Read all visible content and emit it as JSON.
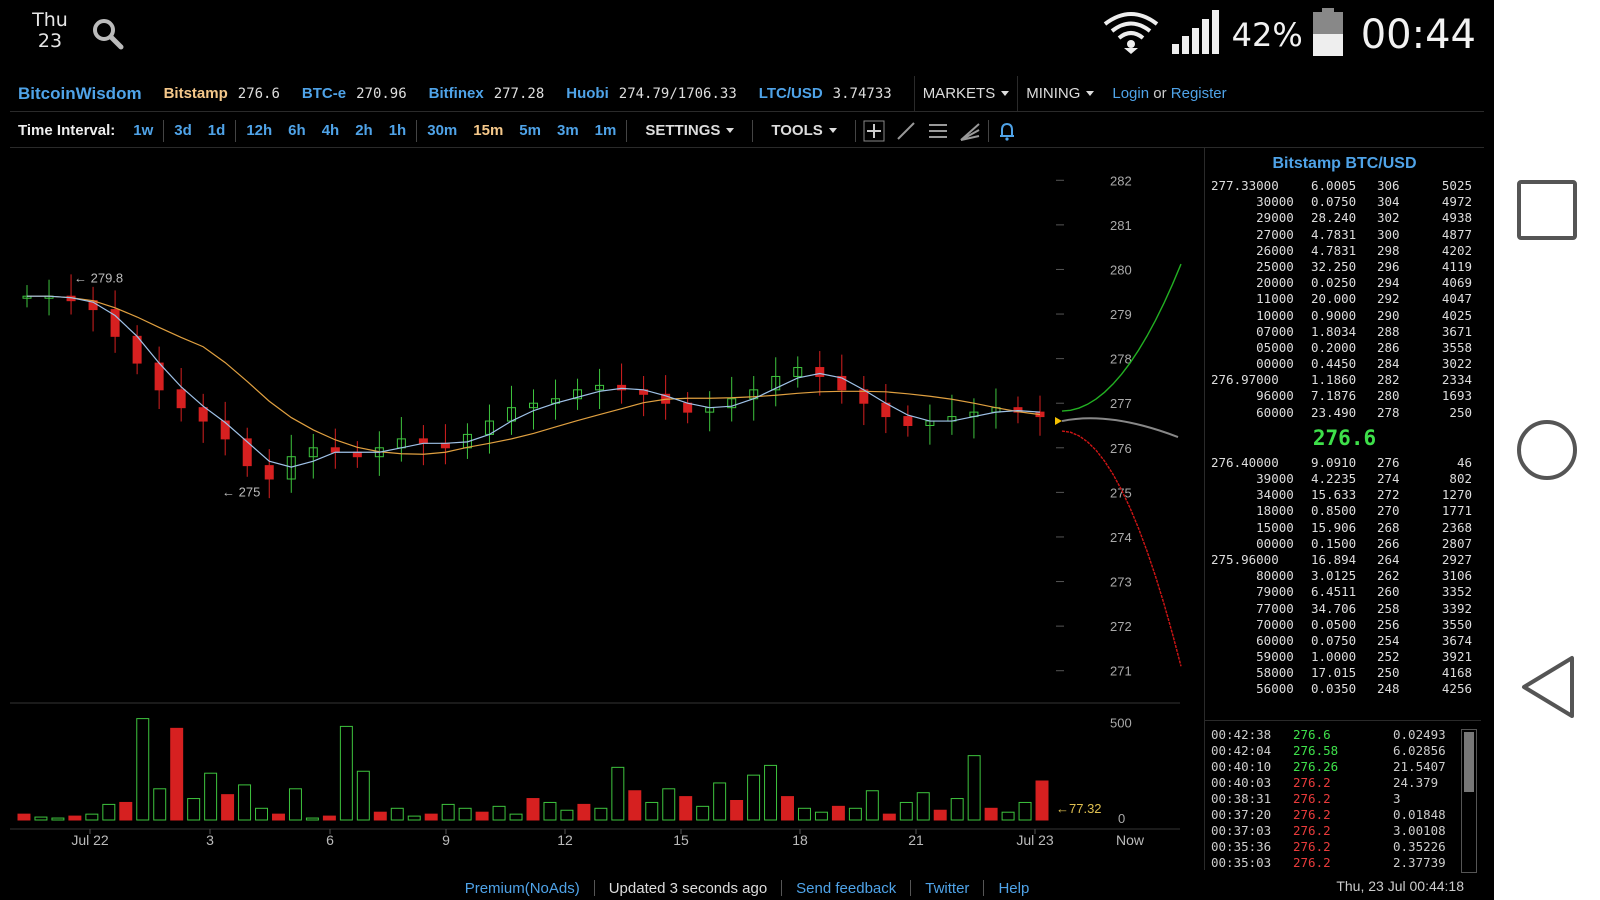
{
  "status_bar": {
    "day_name": "Thu",
    "day_num": "23",
    "battery": "42%",
    "time": "00:44",
    "icons": [
      "search-icon",
      "wifi-icon",
      "signal-icon",
      "battery-icon"
    ]
  },
  "nav": {
    "brand": "BitcoinWisdom",
    "tickers": [
      {
        "exchange": "Bitstamp",
        "price": "276.6"
      },
      {
        "exchange": "BTC-e",
        "price": "270.96"
      },
      {
        "exchange": "Bitfinex",
        "price": "277.28"
      },
      {
        "exchange": "Huobi",
        "price": "274.79/1706.33"
      },
      {
        "exchange": "LTC/USD",
        "price": "3.74733"
      }
    ],
    "markets_label": "MARKETS",
    "mining_label": "MINING",
    "login_label": "Login",
    "or_label": "or",
    "register_label": "Register"
  },
  "toolbar": {
    "interval_label": "Time Interval:",
    "intervals": [
      "1w",
      "3d",
      "1d",
      "12h",
      "6h",
      "4h",
      "2h",
      "1h",
      "30m",
      "15m",
      "5m",
      "3m",
      "1m"
    ],
    "active_interval": "15m",
    "settings_label": "SETTINGS",
    "tools_label": "TOOLS",
    "tool_icons": [
      "crosshair-icon",
      "line-tool-icon",
      "horizontal-lines-icon",
      "fan-tool-icon",
      "alert-bell-icon"
    ]
  },
  "chart": {
    "price_ticks": [
      "282",
      "281",
      "280",
      "279",
      "278",
      "277",
      "276",
      "275",
      "274",
      "273",
      "272",
      "271"
    ],
    "volume_ticks": [
      "500",
      "0"
    ],
    "x_ticks": [
      "Jul 22",
      "3",
      "6",
      "9",
      "12",
      "15",
      "18",
      "21",
      "Jul 23",
      "Now"
    ],
    "annotation_high": "← 279.8",
    "annotation_low": "← 275",
    "annotation_volume": "←77.32",
    "colors": {
      "up": "#3ec43e",
      "down": "#d62020",
      "ma_fast": "#9fc2e8",
      "ma_slow": "#e0a040",
      "depth_bid": "#22b022",
      "depth_ask": "#d01515"
    }
  },
  "chart_data": {
    "type": "candlestick",
    "pair": "Bitstamp BTC/USD",
    "ylim": [
      270.5,
      282.5
    ],
    "volume_ylim": [
      0,
      600
    ],
    "last_price": 276.6,
    "high_marker": 279.8,
    "low_marker": 275,
    "last_volume": 77.32,
    "x_labels": [
      "Jul 22",
      "3",
      "6",
      "9",
      "12",
      "15",
      "18",
      "21",
      "Jul 23",
      "Now"
    ],
    "close_series_approx": [
      279.4,
      279.4,
      279.3,
      279.1,
      278.5,
      277.9,
      277.3,
      276.9,
      276.6,
      276.2,
      275.6,
      275.3,
      275.8,
      276.0,
      275.9,
      275.8,
      276.0,
      276.2,
      276.1,
      276.0,
      276.3,
      276.6,
      276.9,
      277.0,
      277.1,
      277.3,
      277.4,
      277.3,
      277.2,
      277.0,
      276.8,
      276.9,
      277.1,
      277.3,
      277.6,
      277.8,
      277.6,
      277.3,
      277.0,
      276.7,
      276.5,
      276.6,
      276.7,
      276.8,
      276.9,
      276.8,
      276.7
    ],
    "volumes_approx": [
      30,
      15,
      10,
      20,
      30,
      80,
      90,
      520,
      160,
      470,
      110,
      240,
      130,
      180,
      60,
      30,
      160,
      10,
      20,
      480,
      250,
      40,
      60,
      20,
      30,
      80,
      60,
      40,
      70,
      30,
      110,
      90,
      50,
      80,
      60,
      270,
      150,
      90,
      160,
      120,
      70,
      190,
      100,
      230,
      280,
      120,
      60,
      40,
      70,
      60,
      150,
      30,
      90,
      140,
      50,
      110,
      330,
      60,
      40,
      90,
      200
    ]
  },
  "order_book": {
    "title": "Bitstamp BTC/USD",
    "asks": [
      {
        "price": "277.33000",
        "amount": "6.0005",
        "sum": "306",
        "total": "5025"
      },
      {
        "price": "      30000",
        "amount": "0.0750",
        "sum": "304",
        "total": "4972"
      },
      {
        "price": "      29000",
        "amount": "28.240",
        "sum": "302",
        "total": "4938"
      },
      {
        "price": "      27000",
        "amount": "4.7831",
        "sum": "300",
        "total": "4877"
      },
      {
        "price": "      26000",
        "amount": "4.7831",
        "sum": "298",
        "total": "4202"
      },
      {
        "price": "      25000",
        "amount": "32.250",
        "sum": "296",
        "total": "4119"
      },
      {
        "price": "      20000",
        "amount": "0.0250",
        "sum": "294",
        "total": "4069"
      },
      {
        "price": "      11000",
        "amount": "20.000",
        "sum": "292",
        "total": "4047"
      },
      {
        "price": "      10000",
        "amount": "0.9000",
        "sum": "290",
        "total": "4025"
      },
      {
        "price": "      07000",
        "amount": "1.8034",
        "sum": "288",
        "total": "3671"
      },
      {
        "price": "      05000",
        "amount": "0.2000",
        "sum": "286",
        "total": "3558"
      },
      {
        "price": "      00000",
        "amount": "0.4450",
        "sum": "284",
        "total": "3022"
      },
      {
        "price": "276.97000",
        "amount": "1.1860",
        "sum": "282",
        "total": "2334"
      },
      {
        "price": "      96000",
        "amount": "7.1876",
        "sum": "280",
        "total": "1693"
      },
      {
        "price": "      60000",
        "amount": "23.490",
        "sum": "278",
        "total": "250"
      }
    ],
    "mid_price": "276.6",
    "bids": [
      {
        "price": "276.40000",
        "amount": "9.0910",
        "sum": "276",
        "total": "46"
      },
      {
        "price": "      39000",
        "amount": "4.2235",
        "sum": "274",
        "total": "802"
      },
      {
        "price": "      34000",
        "amount": "15.633",
        "sum": "272",
        "total": "1270"
      },
      {
        "price": "      18000",
        "amount": "0.8500",
        "sum": "270",
        "total": "1771"
      },
      {
        "price": "      15000",
        "amount": "15.906",
        "sum": "268",
        "total": "2368"
      },
      {
        "price": "      00000",
        "amount": "0.1500",
        "sum": "266",
        "total": "2807"
      },
      {
        "price": "275.96000",
        "amount": "16.894",
        "sum": "264",
        "total": "2927"
      },
      {
        "price": "      80000",
        "amount": "3.0125",
        "sum": "262",
        "total": "3106"
      },
      {
        "price": "      79000",
        "amount": "6.4511",
        "sum": "260",
        "total": "3352"
      },
      {
        "price": "      77000",
        "amount": "34.706",
        "sum": "258",
        "total": "3392"
      },
      {
        "price": "      70000",
        "amount": "0.0500",
        "sum": "256",
        "total": "3550"
      },
      {
        "price": "      60000",
        "amount": "0.0750",
        "sum": "254",
        "total": "3674"
      },
      {
        "price": "      59000",
        "amount": "1.0000",
        "sum": "252",
        "total": "3921"
      },
      {
        "price": "      58000",
        "amount": "17.015",
        "sum": "250",
        "total": "4168"
      },
      {
        "price": "      56000",
        "amount": "0.0350",
        "sum": "248",
        "total": "4256"
      }
    ]
  },
  "trades": [
    {
      "time": "00:42:38",
      "price": "276.6",
      "amount": "0.02493",
      "dir": "up"
    },
    {
      "time": "00:42:04",
      "price": "276.58",
      "amount": "6.02856",
      "dir": "up"
    },
    {
      "time": "00:40:10",
      "price": "276.26",
      "amount": "21.5407",
      "dir": "up"
    },
    {
      "time": "00:40:03",
      "price": "276.2",
      "amount": "24.379",
      "dir": "down"
    },
    {
      "time": "00:38:31",
      "price": "276.2",
      "amount": "3",
      "dir": "down"
    },
    {
      "time": "00:37:20",
      "price": "276.2",
      "amount": "0.01848",
      "dir": "down"
    },
    {
      "time": "00:37:03",
      "price": "276.2",
      "amount": "3.00108",
      "dir": "down"
    },
    {
      "time": "00:35:36",
      "price": "276.2",
      "amount": "0.35226",
      "dir": "down"
    },
    {
      "time": "00:35:03",
      "price": "276.2",
      "amount": "2.37739",
      "dir": "down"
    }
  ],
  "footer": {
    "premium_label": "Premium(NoAds)",
    "updated_label": "Updated 3 seconds ago",
    "feedback_label": "Send feedback",
    "twitter_label": "Twitter",
    "help_label": "Help",
    "timestamp": "Thu, 23 Jul 00:44:18"
  },
  "android_nav": [
    "recents-icon",
    "home-icon",
    "back-icon"
  ]
}
